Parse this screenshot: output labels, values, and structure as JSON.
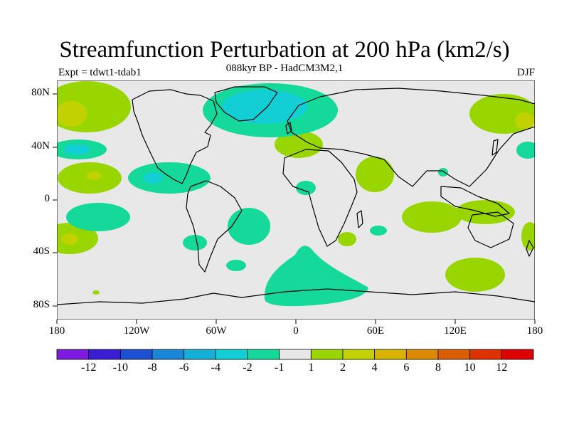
{
  "title": "Streamfunction Perturbation at 200 hPa (km2/s)",
  "subtitle": "088kyr BP - HadCM3M2,1",
  "experiment": "Expt = tdwt1-tdab1",
  "season": "DJF",
  "lat_labels": [
    "80N",
    "40N",
    "0",
    "40S",
    "80S"
  ],
  "lon_labels": [
    "180",
    "120W",
    "60W",
    "0",
    "60E",
    "120E",
    "180"
  ],
  "colorbar": {
    "labels": [
      "-12",
      "-10",
      "-8",
      "-6",
      "-4",
      "-2",
      "-1",
      "1",
      "2",
      "4",
      "6",
      "8",
      "10",
      "12"
    ],
    "colors": [
      "#7f1ae0",
      "#3a1ed6",
      "#1f50d2",
      "#1a87d6",
      "#15b0d8",
      "#11cfd5",
      "#14d99a",
      "#e8e8e8",
      "#99d600",
      "#c2d200",
      "#d8b400",
      "#dd8a00",
      "#dd5c00",
      "#dd3200",
      "#dd0000"
    ]
  },
  "map_colors": {
    "background": "#e8e8e8",
    "pos1": "#99d600",
    "pos2": "#c2d200",
    "neg1": "#14d99a",
    "neg2": "#11cfd5"
  }
}
